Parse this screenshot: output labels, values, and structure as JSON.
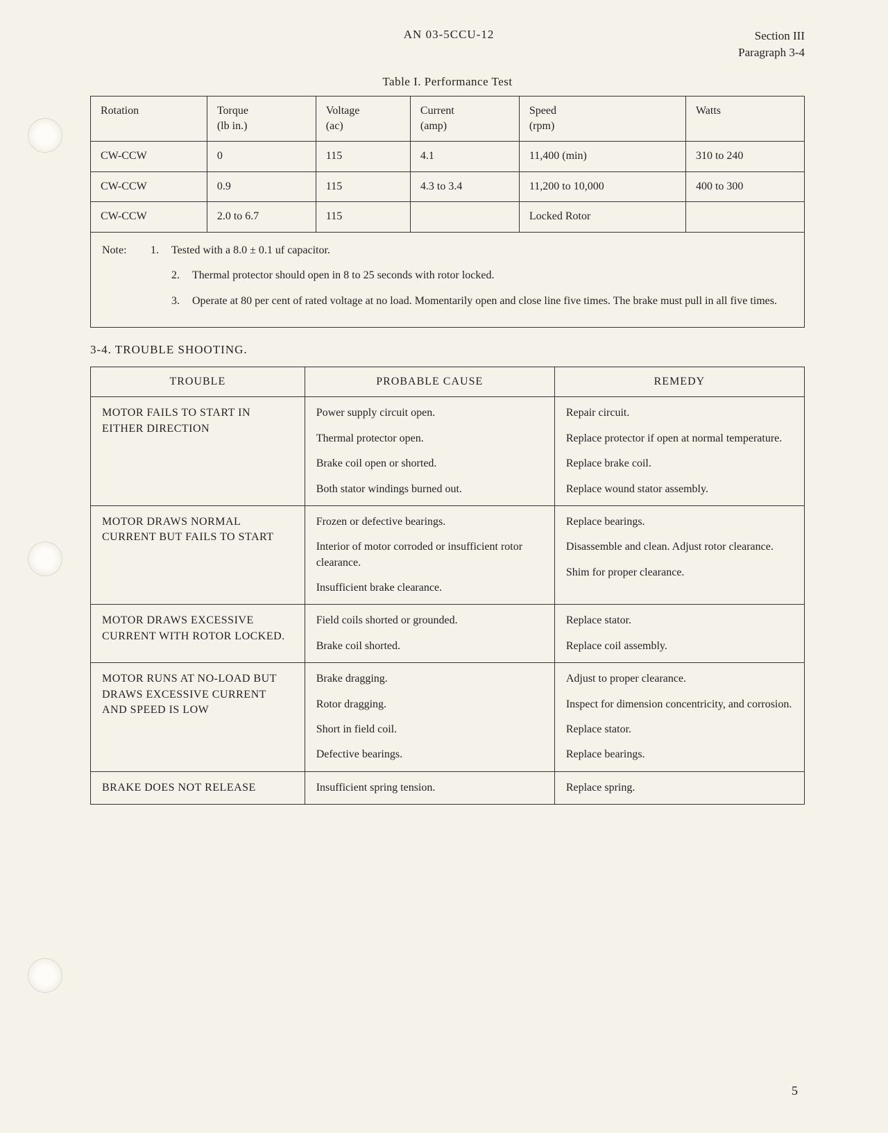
{
  "header": {
    "doc_code": "AN 03-5CCU-12",
    "section": "Section III",
    "paragraph": "Paragraph 3-4"
  },
  "table1": {
    "caption": "Table I.  Performance Test",
    "columns": [
      {
        "label": "Rotation",
        "sublabel": ""
      },
      {
        "label": "Torque",
        "sublabel": "(lb in.)"
      },
      {
        "label": "Voltage",
        "sublabel": "(ac)"
      },
      {
        "label": "Current",
        "sublabel": "(amp)"
      },
      {
        "label": "Speed",
        "sublabel": "(rpm)"
      },
      {
        "label": "Watts",
        "sublabel": ""
      }
    ],
    "rows": [
      [
        "CW-CCW",
        "0",
        "115",
        "4.1",
        "11,400 (min)",
        "310 to 240"
      ],
      [
        "CW-CCW",
        "0.9",
        "115",
        "4.3 to 3.4",
        "11,200 to 10,000",
        "400 to 300"
      ],
      [
        "CW-CCW",
        "2.0 to 6.7",
        "115",
        "",
        "Locked Rotor",
        ""
      ]
    ]
  },
  "notes": {
    "prefix": "Note:",
    "items": [
      "Tested with a 8.0 ± 0.1 uf capacitor.",
      "Thermal protector should open in 8 to 25 seconds with rotor locked.",
      "Operate at 80 per cent of rated voltage at no load.  Momentarily open and close line five times. The brake must pull in all five times."
    ]
  },
  "section_heading": "3-4.  TROUBLE SHOOTING.",
  "table2": {
    "columns": [
      "TROUBLE",
      "PROBABLE CAUSE",
      "REMEDY"
    ],
    "rows": [
      {
        "trouble": "MOTOR FAILS TO START IN EITHER DIRECTION",
        "causes": [
          "Power supply circuit open.",
          "Thermal protector open.",
          "Brake coil open or shorted.",
          "Both stator windings burned out."
        ],
        "remedies": [
          "Repair circuit.",
          "Replace protector if open at normal temperature.",
          "Replace brake coil.",
          "Replace wound stator assembly."
        ]
      },
      {
        "trouble": "MOTOR DRAWS NORMAL CURRENT BUT FAILS TO START",
        "causes": [
          "Frozen or defective bearings.",
          "Interior of motor corroded or insufficient rotor clearance.",
          "Insufficient brake clearance."
        ],
        "remedies": [
          "Replace bearings.",
          "Disassemble and clean.  Adjust rotor clearance.",
          "Shim for proper clearance."
        ]
      },
      {
        "trouble": "MOTOR DRAWS EXCESSIVE CURRENT WITH ROTOR LOCKED.",
        "causes": [
          "Field coils shorted or grounded.",
          "Brake coil shorted."
        ],
        "remedies": [
          "Replace stator.",
          "Replace coil assembly."
        ]
      },
      {
        "trouble": "MOTOR RUNS AT NO-LOAD BUT DRAWS EXCESSIVE CURRENT AND SPEED IS LOW",
        "causes": [
          "Brake dragging.",
          "Rotor dragging.",
          "Short in field coil.",
          "Defective bearings."
        ],
        "remedies": [
          "Adjust to proper clearance.",
          "Inspect for dimension concentricity, and corrosion.",
          "Replace stator.",
          "Replace bearings."
        ]
      },
      {
        "trouble": "BRAKE DOES NOT RELEASE",
        "causes": [
          "Insufficient spring tension."
        ],
        "remedies": [
          "Replace spring."
        ]
      }
    ]
  },
  "page_number": "5"
}
